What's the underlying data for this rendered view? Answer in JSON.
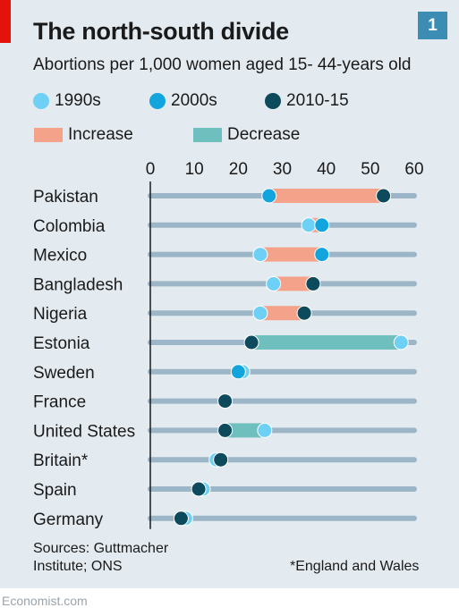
{
  "header": {
    "title": "The north-south divide",
    "badge": "1",
    "subtitle": "Abortions per 1,000 women aged 15- 44-years old"
  },
  "legend": {
    "series": [
      {
        "label": "1990s",
        "color": "#6fd0f6"
      },
      {
        "label": "2000s",
        "color": "#12a5dd"
      },
      {
        "label": "2010-15",
        "color": "#0d4a5c"
      }
    ],
    "increase": {
      "label": "Increase",
      "color": "#f4a38a"
    },
    "decrease": {
      "label": "Decrease",
      "color": "#6fbfbf"
    }
  },
  "chart_data": {
    "type": "dot-range",
    "title": "The north-south divide",
    "subtitle": "Abortions per 1,000 women aged 15- 44-years old",
    "xlim": [
      0,
      60
    ],
    "xticks": [
      0,
      10,
      20,
      30,
      40,
      50,
      60
    ],
    "grid": false,
    "legend_position": "top",
    "series": [
      {
        "name": "1990s",
        "color": "#6fd0f6"
      },
      {
        "name": "2000s",
        "color": "#12a5dd"
      },
      {
        "name": "2010-15",
        "color": "#0d4a5c"
      }
    ],
    "rows": [
      {
        "country": "Pakistan",
        "1990s": null,
        "2000s": 27,
        "2010-15": 53
      },
      {
        "country": "Colombia",
        "1990s": 36,
        "2000s": 39,
        "2010-15": null
      },
      {
        "country": "Mexico",
        "1990s": 25,
        "2000s": 39,
        "2010-15": null
      },
      {
        "country": "Bangladesh",
        "1990s": 28,
        "2000s": null,
        "2010-15": 37
      },
      {
        "country": "Nigeria",
        "1990s": 25,
        "2000s": null,
        "2010-15": 35
      },
      {
        "country": "Estonia",
        "1990s": 57,
        "2000s": null,
        "2010-15": 23
      },
      {
        "country": "Sweden",
        "1990s": 21,
        "2000s": 20,
        "2010-15": null
      },
      {
        "country": "France",
        "1990s": 17,
        "2000s": null,
        "2010-15": 17
      },
      {
        "country": "United States",
        "1990s": 26,
        "2000s": null,
        "2010-15": 17
      },
      {
        "country": "Britain*",
        "1990s": 15,
        "2000s": null,
        "2010-15": 16
      },
      {
        "country": "Spain",
        "1990s": 12,
        "2000s": null,
        "2010-15": 11
      },
      {
        "country": "Germany",
        "1990s": 8,
        "2000s": null,
        "2010-15": 7
      }
    ]
  },
  "footer": {
    "sources": "Sources: Guttmacher",
    "sources_line2": "Institute; ONS",
    "note": "*England and Wales",
    "credit": "Economist.com"
  }
}
